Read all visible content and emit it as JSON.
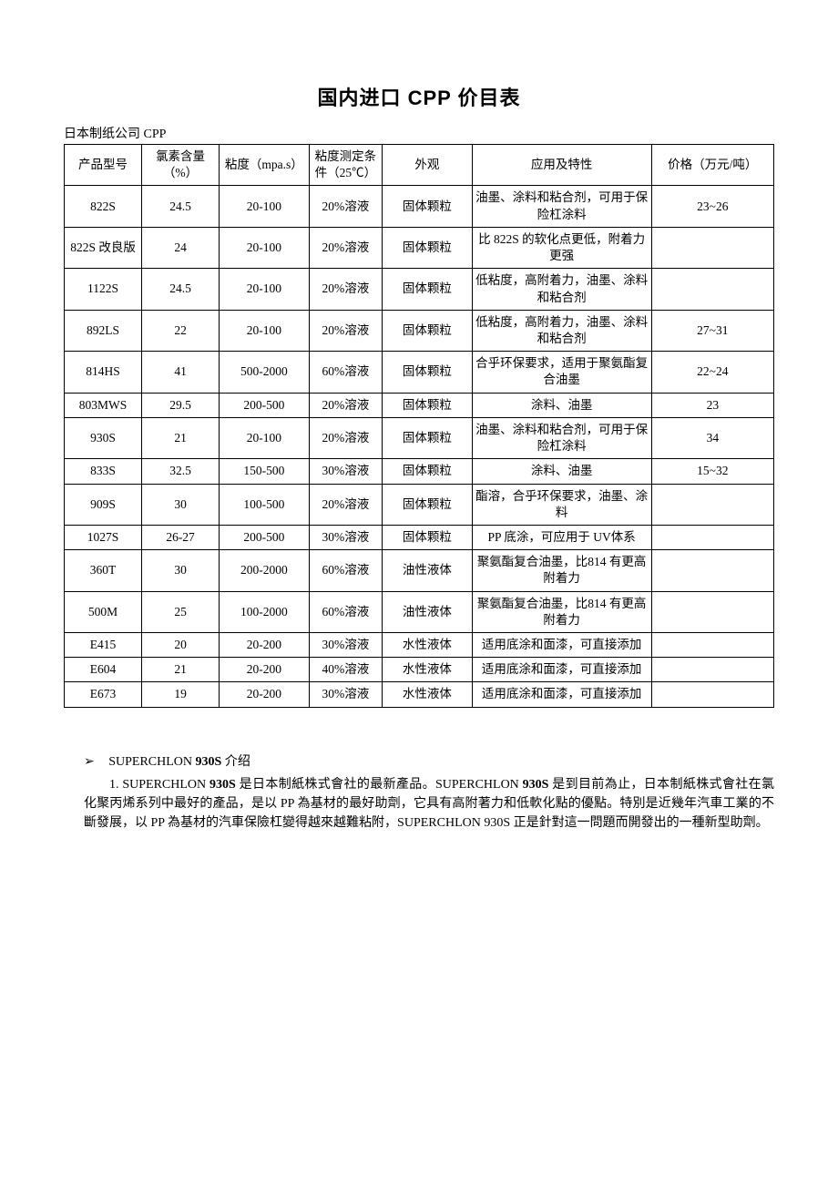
{
  "title": "国内进口 CPP 价目表",
  "subtitle": "日本制纸公司 CPP",
  "table": {
    "columns": [
      "产品型号",
      "氯素含量（%）",
      "粘度（mpa.s）",
      "粘度测定条件（25℃）",
      "外观",
      "应用及特性",
      "价格（万元/吨）"
    ],
    "rows": [
      [
        "822S",
        "24.5",
        "20-100",
        "20%溶液",
        "固体颗粒",
        "油墨、涂料和粘合剂，可用于保险杠涂料",
        "23~26"
      ],
      [
        "822S 改良版",
        "24",
        "20-100",
        "20%溶液",
        "固体颗粒",
        "比 822S 的软化点更低，附着力更强",
        ""
      ],
      [
        "1122S",
        "24.5",
        "20-100",
        "20%溶液",
        "固体颗粒",
        "低粘度，高附着力，油墨、涂料和粘合剂",
        ""
      ],
      [
        "892LS",
        "22",
        "20-100",
        "20%溶液",
        "固体颗粒",
        "低粘度，高附着力，油墨、涂料和粘合剂",
        "27~31"
      ],
      [
        "814HS",
        "41",
        "500-2000",
        "60%溶液",
        "固体颗粒",
        "合乎环保要求，适用于聚氨酯复合油墨",
        "22~24"
      ],
      [
        "803MWS",
        "29.5",
        "200-500",
        "20%溶液",
        "固体颗粒",
        "涂料、油墨",
        "23"
      ],
      [
        "930S",
        "21",
        "20-100",
        "20%溶液",
        "固体颗粒",
        "油墨、涂料和粘合剂，可用于保险杠涂料",
        "34"
      ],
      [
        "833S",
        "32.5",
        "150-500",
        "30%溶液",
        "固体颗粒",
        "涂料、油墨",
        "15~32"
      ],
      [
        "909S",
        "30",
        "100-500",
        "20%溶液",
        "固体颗粒",
        "酯溶，合乎环保要求，油墨、涂料",
        ""
      ],
      [
        "1027S",
        "26-27",
        "200-500",
        "30%溶液",
        "固体颗粒",
        "PP 底涂，可应用于 UV体系",
        ""
      ],
      [
        "360T",
        "30",
        "200-2000",
        "60%溶液",
        "油性液体",
        "聚氨酯复合油墨，比814 有更高附着力",
        ""
      ],
      [
        "500M",
        "25",
        "100-2000",
        "60%溶液",
        "油性液体",
        "聚氨酯复合油墨，比814 有更高附着力",
        ""
      ],
      [
        "E415",
        "20",
        "20-200",
        "30%溶液",
        "水性液体",
        "适用底涂和面漆，可直接添加",
        ""
      ],
      [
        "E604",
        "21",
        "20-200",
        "40%溶液",
        "水性液体",
        "适用底涂和面漆，可直接添加",
        ""
      ],
      [
        "E673",
        "19",
        "20-200",
        "30%溶液",
        "水性液体",
        "适用底涂和面漆，可直接添加",
        ""
      ]
    ]
  },
  "section": {
    "bullet_symbol": "➢",
    "heading_prefix": "SUPERCHLON",
    "heading_bold": " 930S ",
    "heading_suffix": "介绍",
    "para_parts": [
      "1. SUPERCHLON",
      " 930S ",
      "是日本制紙株式會社的最新產品。SUPERCHLON",
      " 930S ",
      "是到目前為止，日本制紙株式會社在氯化聚丙烯系列中最好的產品，是以 PP 為基材的最好助劑，它具有高附著力和低軟化點的優點。特別是近幾年汽車工業的不斷發展，以 PP 為基材的汽車保險杠變得越來越難粘附，SUPERCHLON 930S 正是針對這一問題而開發出的一種新型助劑。"
    ]
  }
}
